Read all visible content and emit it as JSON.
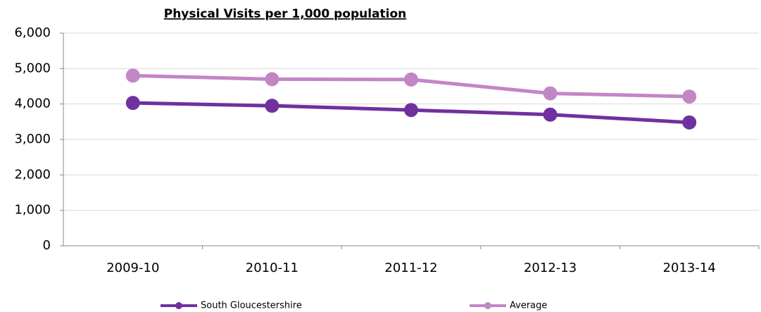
{
  "chart_data": {
    "type": "line",
    "title": "Physical Visits per 1,000 population",
    "categories": [
      "2009-10",
      "2010-11",
      "2011-12",
      "2012-13",
      "2013-14"
    ],
    "series": [
      {
        "name": "South Gloucestershire",
        "color": "#7030a0",
        "values": [
          4030,
          3950,
          3830,
          3700,
          3480
        ]
      },
      {
        "name": "Average",
        "color": "#c386c5",
        "values": [
          4800,
          4700,
          4690,
          4300,
          4210
        ]
      }
    ],
    "ylim": [
      0,
      6000
    ],
    "yticks": [
      0,
      {
        "value": 1000,
        "label": "1,000"
      },
      {
        "value": 2000,
        "label": "2,000"
      },
      {
        "value": 3000,
        "label": "3,000"
      },
      {
        "value": 4000,
        "label": "4,000"
      },
      {
        "value": 5000,
        "label": "5,000"
      },
      {
        "value": 6000,
        "label": "6,000"
      }
    ],
    "grid": true,
    "legend": "bottom"
  }
}
